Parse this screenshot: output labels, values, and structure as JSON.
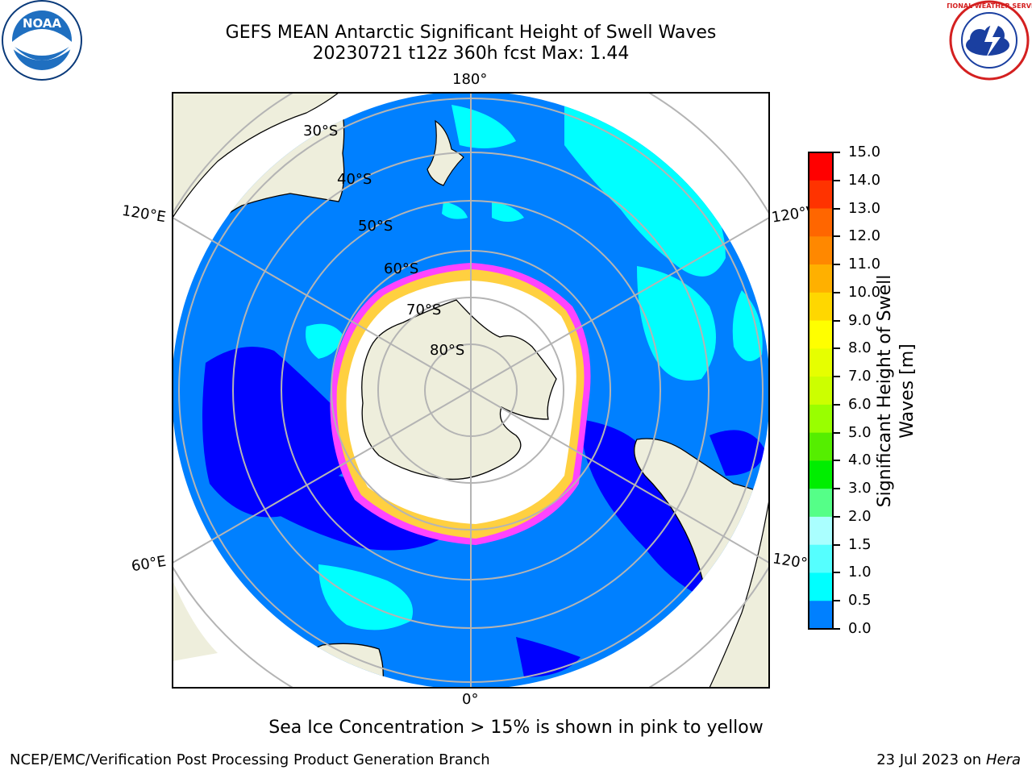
{
  "title_line1": "GEFS MEAN Antarctic Significant Height of Swell Waves",
  "title_line2": "20230721 t12z 360h fcst   Max: 1.44",
  "logos": {
    "left": "noara-logo",
    "right": "national-weather-service-logo",
    "left_text": "NOAA",
    "right_text": "NATIONAL WEATHER SERVICE"
  },
  "map": {
    "projection": "south-polar-stereographic",
    "lon_labels": {
      "top": "180°",
      "bottom": "0°",
      "upper_left": "120°E",
      "upper_right": "120°W",
      "lower_left": "60°E",
      "lower_right": "60°W"
    },
    "lat_labels": [
      "30°S",
      "40°S",
      "50°S",
      "60°S",
      "70°S",
      "80°S"
    ],
    "colors": {
      "land": "#eeeedc",
      "ocean_low": "#0080ff",
      "ocean_0_05": "#0000ff",
      "swell_1_15": "#00ffff",
      "ice_edge": "#ff44ff",
      "ice_inner": "#ffd040",
      "antarctic_ice": "#ffffff"
    }
  },
  "colorbar": {
    "title": "Significant Height of Swell Waves [m]",
    "ticks": [
      "15.0",
      "14.0",
      "13.0",
      "12.0",
      "11.0",
      "10.0",
      "9.0",
      "8.0",
      "7.0",
      "6.0",
      "5.0",
      "4.0",
      "3.0",
      "2.0",
      "1.5",
      "1.0",
      "0.5",
      "0.0"
    ],
    "bands": [
      "#ff0000",
      "#ff3300",
      "#ff6600",
      "#ff8800",
      "#ffb000",
      "#ffd700",
      "#ffff00",
      "#e6ff00",
      "#ccff00",
      "#99ff00",
      "#55ee00",
      "#00ee00",
      "#55ff88",
      "#aaffff",
      "#55ffff",
      "#00ffff",
      "#0080ff",
      "#0000ff"
    ]
  },
  "note": "Sea Ice Concentration > 15% is shown in pink to yellow",
  "footer_left": "NCEP/EMC/Verification Post Processing Product Generation Branch",
  "footer_right_date": "23 Jul 2023 on ",
  "footer_right_machine": "Hera"
}
